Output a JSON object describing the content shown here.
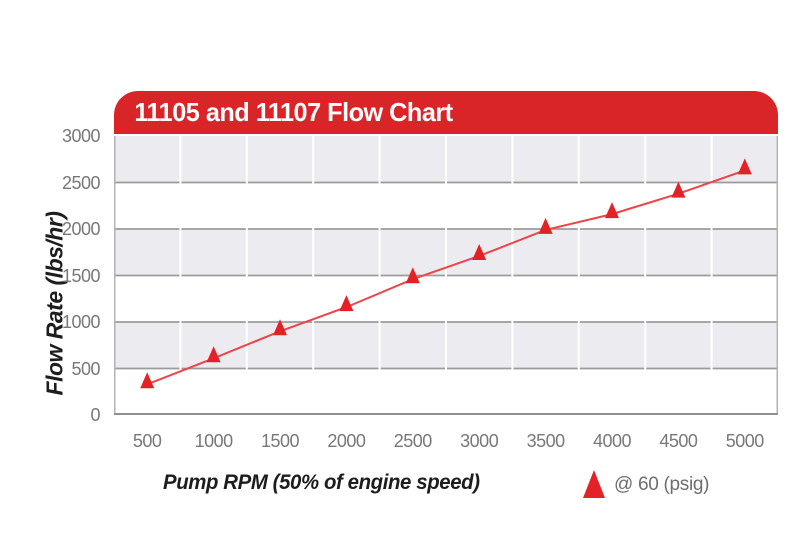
{
  "chart": {
    "title": "11105 and 11107 Flow Chart",
    "y_axis_title": "Flow Rate (lbs/hr)",
    "x_axis_title": "Pump RPM (50% of engine speed)",
    "legend_label": "@ 60 (psig)",
    "colors": {
      "banner_red": "#d92428",
      "marker_red": "#e32227",
      "line_red": "#ef4348",
      "band_gray": "#ececf0",
      "band_white": "#ffffff",
      "h_gridline": "#9b9b9b",
      "v_gridline": "#ffffff",
      "axis_bottom": "#8f8f92",
      "axis_side": "#b3b3b6",
      "tick_text": "#77787a",
      "legend_text": "#6d6e71"
    }
  },
  "chart_data": {
    "type": "line",
    "title": "11105 and 11107 Flow Chart",
    "xlabel": "Pump RPM (50% of engine speed)",
    "ylabel": "Flow Rate (lbs/hr)",
    "x": [
      500,
      1000,
      1500,
      2000,
      2500,
      3000,
      3500,
      4000,
      4500,
      5000
    ],
    "series": [
      {
        "name": "@ 60 (psig)",
        "marker": "triangle-up",
        "values": [
          330,
          610,
          900,
          1160,
          1460,
          1710,
          1990,
          2160,
          2380,
          2630
        ]
      }
    ],
    "ylim": [
      0,
      3000
    ],
    "y_ticks": [
      0,
      500,
      1000,
      1500,
      2000,
      2500,
      3000
    ],
    "x_tick_labels": [
      "500",
      "1000",
      "1500",
      "2000",
      "2500",
      "3000",
      "3500",
      "4000",
      "4500",
      "5000"
    ],
    "grid": "horizontal gray gridlines every 500, alternating gray/white bands, white vertical category boundaries",
    "legend_position": "bottom-right"
  }
}
